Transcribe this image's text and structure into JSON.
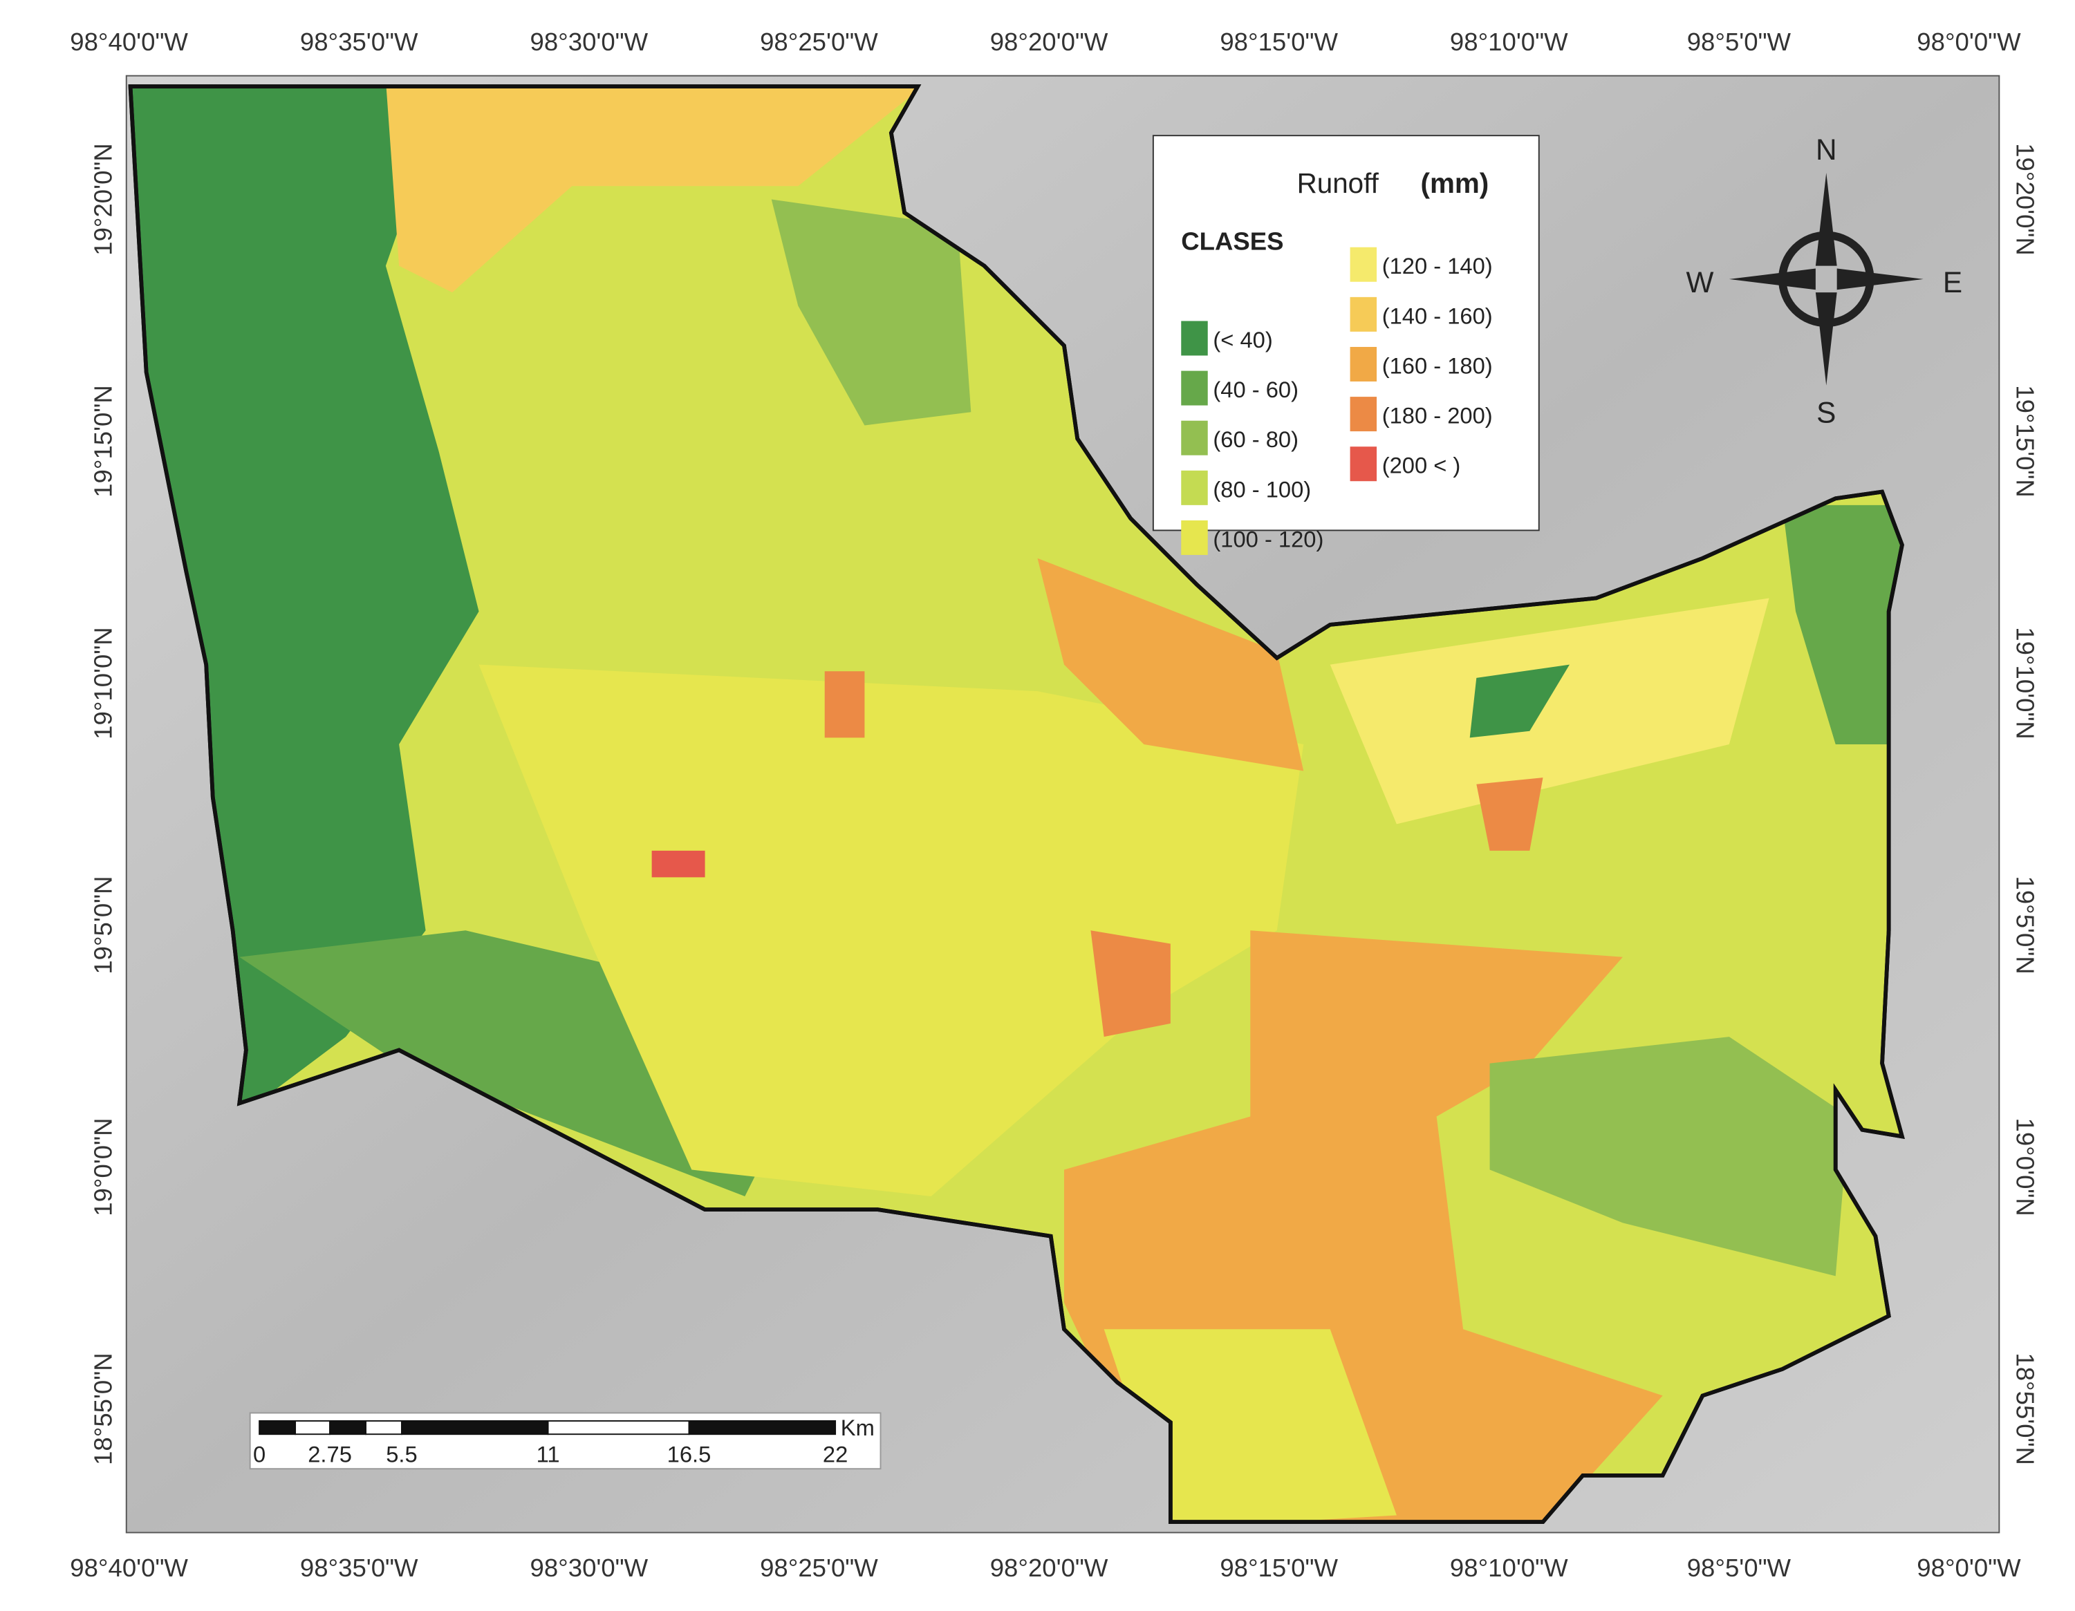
{
  "map": {
    "top_labels": [
      "98°40'0\"W",
      "98°35'0\"W",
      "98°30'0\"W",
      "98°25'0\"W",
      "98°20'0\"W",
      "98°15'0\"W",
      "98°10'0\"W",
      "98°5'0\"W",
      "98°0'0\"W"
    ],
    "side_labels": [
      "19°20'0\"N",
      "19°15'0\"N",
      "19°10'0\"N",
      "19°5'0\"N",
      "19°0'0\"N",
      "18°55'0\"N"
    ],
    "legend": {
      "title": "Runoff",
      "unit": "(mm)",
      "heading": "CLASES",
      "classes": [
        {
          "label": "(< 40)",
          "color": "#3f9447"
        },
        {
          "label": "(40 - 60)",
          "color": "#66a84a"
        },
        {
          "label": "(60 - 80)",
          "color": "#93bf51"
        },
        {
          "label": "(80 - 100)",
          "color": "#c4db52"
        },
        {
          "label": "(100 - 120)",
          "color": "#e6e64e"
        },
        {
          "label": "(120 - 140)",
          "color": "#f5ea6c"
        },
        {
          "label": "(140 - 160)",
          "color": "#f6cb57"
        },
        {
          "label": "(160 - 180)",
          "color": "#f1a946"
        },
        {
          "label": "(180 - 200)",
          "color": "#ec8a45"
        },
        {
          "label": "(200 < )",
          "color": "#e6584b"
        }
      ]
    },
    "compass": {
      "n": "N",
      "s": "S",
      "w": "W",
      "e": "E"
    },
    "scale_bar": {
      "labels": [
        "0",
        "2.75",
        "5.5",
        "11",
        "16.5",
        "22"
      ],
      "unit": "Km"
    }
  }
}
